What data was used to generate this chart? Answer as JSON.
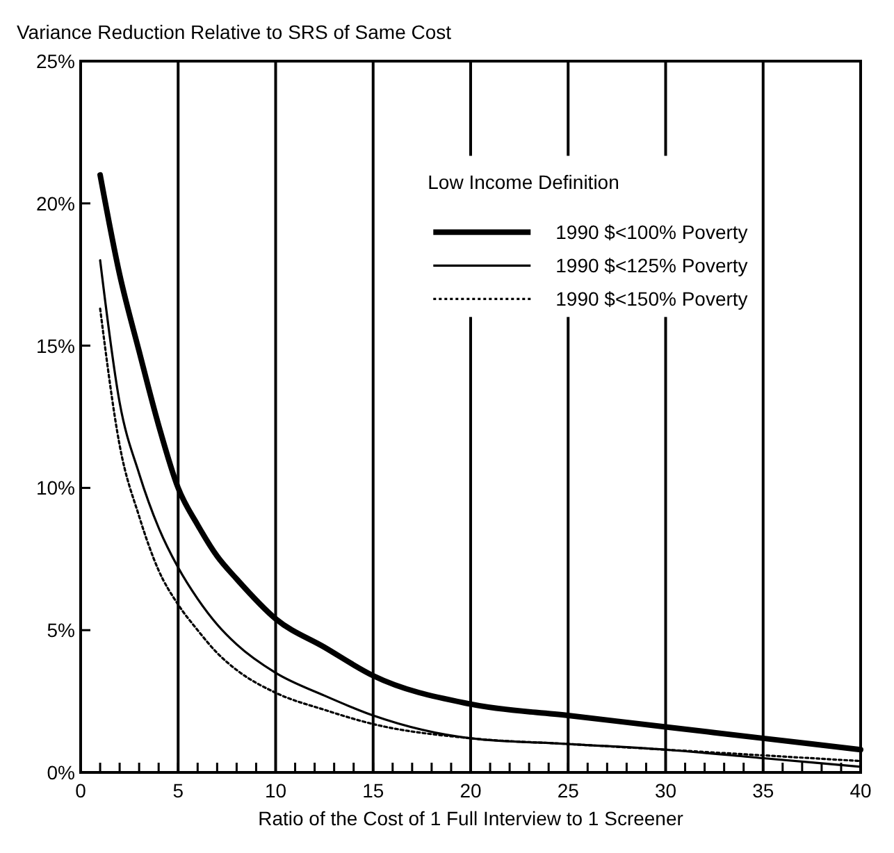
{
  "chart_data": {
    "type": "line",
    "ylabel": "Variance Reduction Relative to SRS of Same Cost",
    "xlabel": "Ratio of the Cost of 1 Full Interview to 1 Screener",
    "legend_title": "Low Income Definition",
    "legend": "top right",
    "grid": "x",
    "xlim": [
      0,
      40
    ],
    "ylim": [
      0,
      25
    ],
    "xticks": [
      0,
      {
        "value": 1,
        "label": null
      },
      {
        "value": 2,
        "label": null
      },
      {
        "value": 3,
        "label": null
      },
      {
        "value": 4,
        "label": null
      },
      5,
      {
        "value": 6,
        "label": null
      },
      {
        "value": 7,
        "label": null
      },
      {
        "value": 8,
        "label": null
      },
      {
        "value": 9,
        "label": null
      },
      10,
      {
        "value": 11,
        "label": null
      },
      {
        "value": 12,
        "label": null
      },
      {
        "value": 13,
        "label": null
      },
      {
        "value": 14,
        "label": null
      },
      15,
      {
        "value": 16,
        "label": null
      },
      {
        "value": 17,
        "label": null
      },
      {
        "value": 18,
        "label": null
      },
      {
        "value": 19,
        "label": null
      },
      20,
      {
        "value": 21,
        "label": null
      },
      {
        "value": 22,
        "label": null
      },
      {
        "value": 23,
        "label": null
      },
      {
        "value": 24,
        "label": null
      },
      25,
      {
        "value": 26,
        "label": null
      },
      {
        "value": 27,
        "label": null
      },
      {
        "value": 28,
        "label": null
      },
      {
        "value": 29,
        "label": null
      },
      30,
      {
        "value": 31,
        "label": null
      },
      {
        "value": 32,
        "label": null
      },
      {
        "value": 33,
        "label": null
      },
      {
        "value": 34,
        "label": null
      },
      35,
      {
        "value": 36,
        "label": null
      },
      {
        "value": 37,
        "label": null
      },
      {
        "value": 38,
        "label": null
      },
      {
        "value": 39,
        "label": null
      },
      40
    ],
    "yticks": [
      {
        "value": 0,
        "label": "0%"
      },
      {
        "value": 5,
        "label": "5%"
      },
      {
        "value": 10,
        "label": "10%"
      },
      {
        "value": 15,
        "label": "15%"
      },
      {
        "value": 20,
        "label": "20%"
      },
      {
        "value": 25,
        "label": "25%"
      }
    ],
    "marker": "none",
    "series": [
      {
        "name": "1990 $<100% Poverty",
        "color": "#000000",
        "line_style": "solid",
        "x": [
          1,
          2,
          3,
          4,
          5,
          6,
          7,
          8,
          10,
          12.5,
          15,
          20,
          25,
          30,
          35,
          40
        ],
        "values": [
          21,
          17.5,
          14.8,
          12.2,
          10,
          8.7,
          7.6,
          6.8,
          5.4,
          4.4,
          3.4,
          2.4,
          2.0,
          1.6,
          1.2,
          0.8
        ]
      },
      {
        "name": "1990 $<125% Poverty",
        "color": "#000000",
        "line_style": "solid",
        "x": [
          1,
          2,
          3,
          4,
          5,
          6,
          7,
          8,
          10,
          12.5,
          15,
          20,
          25,
          30,
          35,
          40
        ],
        "values": [
          18,
          13,
          10.5,
          8.6,
          7.2,
          6.1,
          5.2,
          4.5,
          3.5,
          2.7,
          2.0,
          1.2,
          1.0,
          0.8,
          0.5,
          0.2
        ]
      },
      {
        "name": "1990 $<150% Poverty",
        "color": "#000000",
        "line_style": "dotted",
        "x": [
          1,
          2,
          3,
          4,
          5,
          6,
          7,
          8,
          10,
          12.5,
          15,
          20,
          25,
          30,
          35,
          40
        ],
        "values": [
          16.3,
          11.5,
          9,
          7.1,
          5.9,
          5,
          4.2,
          3.6,
          2.8,
          2.2,
          1.7,
          1.2,
          1.0,
          0.8,
          0.6,
          0.4
        ]
      }
    ]
  }
}
